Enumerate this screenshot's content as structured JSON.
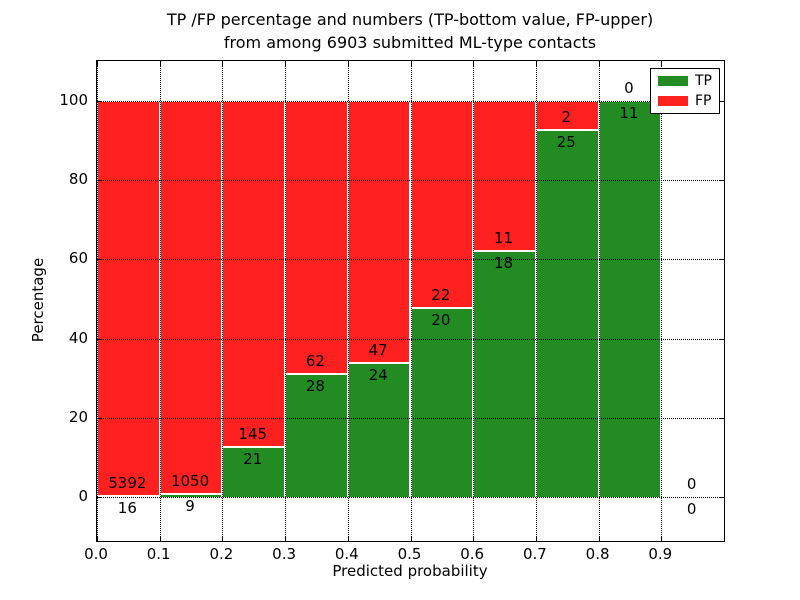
{
  "figure": {
    "title_line1": "TP /FP percentage and numbers (TP-bottom value, FP-upper)",
    "title_line2": "from among 6903 submitted ML-type contacts",
    "xlabel": "Predicted probability",
    "ylabel": "Percentage"
  },
  "legend": {
    "position": "upper right",
    "items": [
      {
        "label": "TP",
        "color": "#228B22"
      },
      {
        "label": "FP",
        "color": "#FF2020"
      }
    ]
  },
  "chart_data": {
    "type": "bar",
    "stacked": true,
    "title": "TP /FP percentage and numbers (TP-bottom value, FP-upper) from among 6903 submitted ML-type contacts",
    "xlabel": "Predicted probability",
    "ylabel": "Percentage",
    "grid": "dotted",
    "legend_position": "upper right",
    "xlim": [
      0.0,
      1.0
    ],
    "ylim": [
      -11,
      110
    ],
    "bin_width": 0.1,
    "xticks": [
      0.0,
      0.1,
      0.2,
      0.3,
      0.4,
      0.5,
      0.6,
      0.7,
      0.8,
      0.9
    ],
    "xtick_labels": [
      "0.0",
      "0.1",
      "0.2",
      "0.3",
      "0.4",
      "0.5",
      "0.6",
      "0.7",
      "0.8",
      "0.9"
    ],
    "yticks": [
      0,
      20,
      40,
      60,
      80,
      100
    ],
    "ytick_labels": [
      "0",
      "20",
      "40",
      "60",
      "80",
      "100"
    ],
    "colors": {
      "tp": "#228B22",
      "fp": "#FF2020"
    },
    "series": [
      {
        "name": "TP",
        "counts": [
          16,
          9,
          21,
          28,
          24,
          20,
          18,
          25,
          11,
          0
        ]
      },
      {
        "name": "FP",
        "counts": [
          5392,
          1050,
          145,
          62,
          47,
          22,
          11,
          2,
          0,
          0
        ]
      }
    ],
    "bins": [
      {
        "range": "0.0-0.1",
        "tp_count": 16,
        "fp_count": 5392,
        "tp_pct": 0.3,
        "fp_pct": 99.7
      },
      {
        "range": "0.1-0.2",
        "tp_count": 9,
        "fp_count": 1050,
        "tp_pct": 0.85,
        "fp_pct": 99.15
      },
      {
        "range": "0.2-0.3",
        "tp_count": 21,
        "fp_count": 145,
        "tp_pct": 12.65,
        "fp_pct": 87.35
      },
      {
        "range": "0.3-0.4",
        "tp_count": 28,
        "fp_count": 62,
        "tp_pct": 31.11,
        "fp_pct": 68.89
      },
      {
        "range": "0.4-0.5",
        "tp_count": 24,
        "fp_count": 47,
        "tp_pct": 33.8,
        "fp_pct": 66.2
      },
      {
        "range": "0.5-0.6",
        "tp_count": 20,
        "fp_count": 22,
        "tp_pct": 47.62,
        "fp_pct": 52.38
      },
      {
        "range": "0.6-0.7",
        "tp_count": 18,
        "fp_count": 11,
        "tp_pct": 62.07,
        "fp_pct": 37.93
      },
      {
        "range": "0.7-0.8",
        "tp_count": 25,
        "fp_count": 2,
        "tp_pct": 92.59,
        "fp_pct": 7.41
      },
      {
        "range": "0.8-0.9",
        "tp_count": 11,
        "fp_count": 0,
        "tp_pct": 100.0,
        "fp_pct": 0.0
      },
      {
        "range": "0.9-1.0",
        "tp_count": 0,
        "fp_count": 0,
        "tp_pct": 0.0,
        "fp_pct": 0.0
      }
    ]
  }
}
